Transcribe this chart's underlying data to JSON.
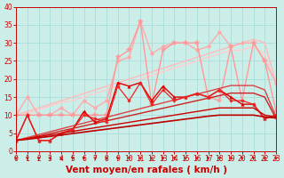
{
  "xlabel": "Vent moyen/en rafales ( km/h )",
  "xlim": [
    0,
    23
  ],
  "ylim": [
    0,
    40
  ],
  "yticks": [
    0,
    5,
    10,
    15,
    20,
    25,
    30,
    35,
    40
  ],
  "xticks": [
    0,
    1,
    2,
    3,
    4,
    5,
    6,
    7,
    8,
    9,
    10,
    11,
    12,
    13,
    14,
    15,
    16,
    17,
    18,
    19,
    20,
    21,
    22,
    23
  ],
  "bg_color": "#cceee8",
  "grid_color": "#aaddda",
  "tick_label_color": "#cc0000",
  "xlabel_color": "#cc0000",
  "tick_fontsize": 5.5,
  "xlabel_fontsize": 7.5,
  "lines": [
    {
      "x": [
        0,
        1,
        2,
        3,
        4,
        5,
        6,
        7,
        8,
        9,
        10,
        11,
        12,
        13,
        14,
        15,
        16,
        17,
        18,
        19,
        20,
        21,
        22,
        23
      ],
      "y": [
        10,
        11,
        12,
        13,
        14,
        15,
        16,
        17,
        18,
        19,
        20,
        21,
        22,
        23,
        24,
        25,
        26,
        27,
        28,
        29,
        30,
        31,
        30,
        19
      ],
      "color": "#ffbbbb",
      "lw": 1.0,
      "marker": null,
      "ms": 0,
      "linestyle": "-"
    },
    {
      "x": [
        0,
        1,
        2,
        3,
        4,
        5,
        6,
        7,
        8,
        9,
        10,
        11,
        12,
        13,
        14,
        15,
        16,
        17,
        18,
        19,
        20,
        21,
        22,
        23
      ],
      "y": [
        10,
        10.5,
        11.5,
        12.5,
        13.5,
        14,
        15,
        16,
        17,
        18,
        19,
        20,
        21,
        22,
        23,
        24,
        25,
        26,
        27,
        28,
        28,
        29,
        27,
        18
      ],
      "color": "#ffcccc",
      "lw": 1.0,
      "marker": null,
      "ms": 0,
      "linestyle": "-"
    },
    {
      "x": [
        0,
        1,
        2,
        3,
        4,
        5,
        6,
        7,
        8,
        9,
        10,
        11,
        12,
        13,
        14,
        15,
        16,
        17,
        18,
        19,
        20,
        21,
        22,
        23
      ],
      "y": [
        10,
        15,
        10,
        10,
        12,
        10,
        14,
        12,
        14,
        25,
        26,
        36,
        27,
        29,
        30,
        30,
        28,
        29,
        33,
        29,
        30,
        30,
        25,
        19
      ],
      "color": "#ffaaaa",
      "lw": 1.0,
      "marker": "D",
      "ms": 2.5,
      "linestyle": "-"
    },
    {
      "x": [
        0,
        1,
        2,
        3,
        4,
        5,
        6,
        7,
        8,
        9,
        10,
        11,
        12,
        13,
        14,
        15,
        16,
        17,
        18,
        19,
        20,
        21,
        22,
        23
      ],
      "y": [
        10,
        10,
        10,
        10,
        10,
        10,
        10,
        10,
        10,
        26,
        28,
        36,
        13,
        28,
        30,
        30,
        30,
        15,
        14,
        29,
        14,
        30,
        25,
        11
      ],
      "color": "#ff9999",
      "lw": 1.0,
      "marker": "*",
      "ms": 4,
      "linestyle": "-"
    },
    {
      "x": [
        0,
        1,
        2,
        3,
        4,
        5,
        6,
        7,
        8,
        9,
        10,
        11,
        12,
        13,
        14,
        15,
        16,
        17,
        18,
        19,
        20,
        21,
        22,
        23
      ],
      "y": [
        3,
        3.8,
        4.6,
        5.4,
        6.2,
        7.0,
        7.8,
        8.6,
        9.4,
        10.2,
        11.0,
        11.8,
        12.6,
        13.4,
        14.2,
        15.0,
        15.8,
        16.6,
        17.4,
        18.2,
        18.2,
        18.2,
        17,
        9.5
      ],
      "color": "#dd4444",
      "lw": 1.0,
      "marker": null,
      "ms": 0,
      "linestyle": "-"
    },
    {
      "x": [
        0,
        1,
        2,
        3,
        4,
        5,
        6,
        7,
        8,
        9,
        10,
        11,
        12,
        13,
        14,
        15,
        16,
        17,
        18,
        19,
        20,
        21,
        22,
        23
      ],
      "y": [
        3,
        3.5,
        4.2,
        4.9,
        5.6,
        6.3,
        7.0,
        7.7,
        8.4,
        9.1,
        9.8,
        10.5,
        11.2,
        11.9,
        12.6,
        13.3,
        14.0,
        14.7,
        15.4,
        16.1,
        16.1,
        16.1,
        15,
        9
      ],
      "color": "#cc2222",
      "lw": 1.0,
      "marker": null,
      "ms": 0,
      "linestyle": "-"
    },
    {
      "x": [
        0,
        1,
        2,
        3,
        4,
        5,
        6,
        7,
        8,
        9,
        10,
        11,
        12,
        13,
        14,
        15,
        16,
        17,
        18,
        19,
        20,
        21,
        22,
        23
      ],
      "y": [
        3,
        10,
        3,
        3,
        5,
        6,
        11,
        8,
        9,
        19,
        18,
        19,
        14,
        18,
        15,
        15,
        16,
        15,
        17,
        15,
        13,
        13,
        9,
        10
      ],
      "color": "#dd0000",
      "lw": 1.0,
      "marker": "^",
      "ms": 2.5,
      "linestyle": "-"
    },
    {
      "x": [
        0,
        1,
        2,
        3,
        4,
        5,
        6,
        7,
        8,
        9,
        10,
        11,
        12,
        13,
        14,
        15,
        16,
        17,
        18,
        19,
        20,
        21,
        22,
        23
      ],
      "y": [
        3,
        10,
        3,
        3,
        5,
        6,
        10,
        9,
        8,
        18,
        14,
        19,
        13,
        17,
        14,
        15,
        16,
        15,
        17,
        14,
        14,
        13,
        9,
        10
      ],
      "color": "#ee2222",
      "lw": 0.9,
      "marker": "D",
      "ms": 1.8,
      "linestyle": "-"
    },
    {
      "x": [
        0,
        1,
        2,
        3,
        4,
        5,
        6,
        7,
        8,
        9,
        10,
        11,
        12,
        13,
        14,
        15,
        16,
        17,
        18,
        19,
        20,
        21,
        22,
        23
      ],
      "y": [
        3,
        3.3,
        3.7,
        4.1,
        4.5,
        4.9,
        5.3,
        5.7,
        6.1,
        6.5,
        6.9,
        7.3,
        7.7,
        8.1,
        8.5,
        8.9,
        9.3,
        9.7,
        10.0,
        10.0,
        10.0,
        10.0,
        9.5,
        9.2
      ],
      "color": "#bb0000",
      "lw": 1.2,
      "marker": null,
      "ms": 0,
      "linestyle": "-"
    },
    {
      "x": [
        0,
        1,
        2,
        3,
        4,
        5,
        6,
        7,
        8,
        9,
        10,
        11,
        12,
        13,
        14,
        15,
        16,
        17,
        18,
        19,
        20,
        21,
        22,
        23
      ],
      "y": [
        3,
        3.5,
        4.0,
        4.5,
        5.0,
        5.5,
        6.0,
        6.5,
        7.0,
        7.5,
        8.0,
        8.5,
        9.0,
        9.5,
        10.0,
        10.5,
        11.0,
        11.5,
        12.0,
        12.0,
        12.0,
        12.0,
        10.0,
        9.5
      ],
      "color": "#cc0000",
      "lw": 1.0,
      "marker": null,
      "ms": 0,
      "linestyle": "-"
    }
  ]
}
